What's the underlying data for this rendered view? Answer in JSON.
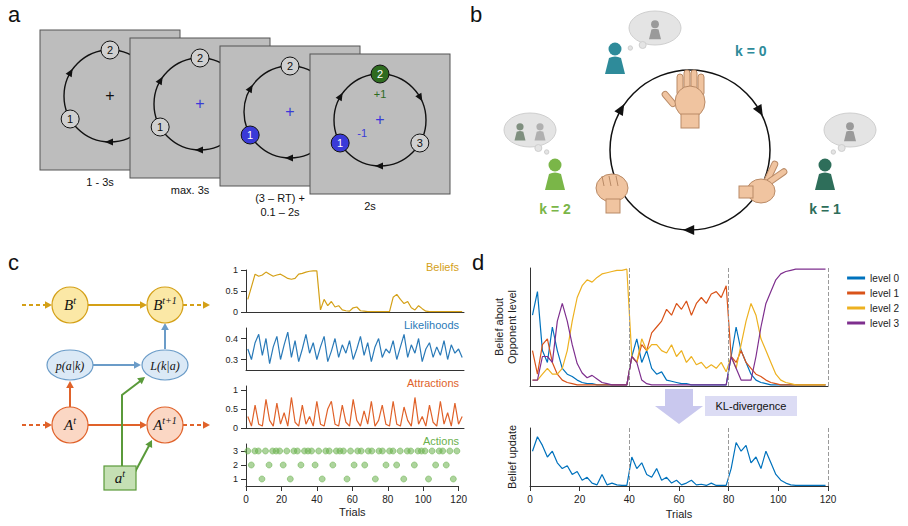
{
  "panel_labels": [
    "a",
    "b",
    "c",
    "d"
  ],
  "panel_a": {
    "screens": [
      {
        "labels": [
          "1",
          "2"
        ],
        "fixation": "+",
        "timing": [
          "1 - 3s"
        ]
      },
      {
        "labels": [
          "1",
          "2"
        ],
        "fixation": "+",
        "timing": [
          "max. 3s"
        ]
      },
      {
        "labels": [
          "1",
          "2"
        ],
        "fixation": "+",
        "timing": [
          "(3 – RT) +",
          "0.1 – 2s"
        ]
      },
      {
        "labels": [
          "1",
          "2",
          "3"
        ],
        "fixation": "+",
        "timing": [
          "2s"
        ],
        "outcomes": [
          "-1",
          "+1"
        ]
      }
    ]
  },
  "panel_b": {
    "players": [
      "k = 0",
      "k = 1",
      "k = 2"
    ]
  },
  "panel_c_diagram": {
    "nodes": [
      {
        "text": "B",
        "sup": "t"
      },
      {
        "text": "B",
        "sup": "t+1"
      },
      {
        "text": "p(a|k)"
      },
      {
        "text": "L(k|a)"
      },
      {
        "text": "A",
        "sup": "t"
      },
      {
        "text": "A",
        "sup": "t+1"
      },
      {
        "text": "a",
        "sup": "t"
      }
    ]
  },
  "panel_d": {
    "arrow_label": "KL-divergence"
  },
  "chart_data": [
    {
      "type": "line",
      "title": "Beliefs",
      "color": "#d4a017",
      "tick_labels": "y",
      "xlim": [
        0,
        120
      ],
      "ylim": [
        0,
        1
      ],
      "yticks": [
        0,
        0.5,
        1
      ],
      "x": [
        1,
        3,
        5,
        7,
        9,
        11,
        13,
        15,
        17,
        19,
        21,
        23,
        25,
        27,
        29,
        31,
        33,
        35,
        37,
        39,
        41,
        43,
        45,
        47,
        49,
        51,
        53,
        55,
        57,
        59,
        61,
        63,
        65,
        67,
        69,
        71,
        73,
        75,
        77,
        79,
        81,
        83,
        85,
        87,
        89,
        91,
        93,
        95,
        97,
        99,
        101,
        103,
        105,
        107,
        109,
        111,
        113,
        115,
        117,
        119
      ],
      "values": [
        0.3,
        0.6,
        0.9,
        0.85,
        0.88,
        0.95,
        0.9,
        0.85,
        0.88,
        0.9,
        0.85,
        0.8,
        0.78,
        0.8,
        0.9,
        0.92,
        0.95,
        0.97,
        0.98,
        0.98,
        0.05,
        0.3,
        0.15,
        0.25,
        0.12,
        0.15,
        0.05,
        0.03,
        0.02,
        0.1,
        0.12,
        0.03,
        0.02,
        0.01,
        0.01,
        0.01,
        0.01,
        0.01,
        0.01,
        0.01,
        0.35,
        0.42,
        0.3,
        0.2,
        0.25,
        0.1,
        0.05,
        0.15,
        0.08,
        0.02,
        0.01,
        0.01,
        0.01,
        0.01,
        0.01,
        0.01,
        0.01,
        0.01,
        0.01,
        0.01
      ]
    },
    {
      "type": "line",
      "title": "Likelihoods",
      "color": "#2a7ab8",
      "tick_labels": "y",
      "xlim": [
        0,
        120
      ],
      "ylim": [
        0.25,
        0.45
      ],
      "yticks": [
        0.3,
        0.4
      ],
      "x": [
        1,
        3,
        5,
        7,
        9,
        11,
        13,
        15,
        17,
        19,
        21,
        23,
        25,
        27,
        29,
        31,
        33,
        35,
        37,
        39,
        41,
        43,
        45,
        47,
        49,
        51,
        53,
        55,
        57,
        59,
        61,
        63,
        65,
        67,
        69,
        71,
        73,
        75,
        77,
        79,
        81,
        83,
        85,
        87,
        89,
        91,
        93,
        95,
        97,
        99,
        101,
        103,
        105,
        107,
        109,
        111,
        113,
        115,
        117,
        119
      ],
      "values": [
        0.35,
        0.3,
        0.38,
        0.42,
        0.32,
        0.4,
        0.28,
        0.36,
        0.41,
        0.3,
        0.37,
        0.43,
        0.31,
        0.39,
        0.29,
        0.35,
        0.42,
        0.33,
        0.38,
        0.3,
        0.36,
        0.41,
        0.29,
        0.34,
        0.4,
        0.31,
        0.37,
        0.33,
        0.39,
        0.3,
        0.35,
        0.41,
        0.32,
        0.38,
        0.29,
        0.36,
        0.4,
        0.31,
        0.35,
        0.33,
        0.39,
        0.3,
        0.36,
        0.42,
        0.31,
        0.37,
        0.33,
        0.4,
        0.29,
        0.35,
        0.38,
        0.31,
        0.36,
        0.32,
        0.39,
        0.3,
        0.37,
        0.33,
        0.35,
        0.31
      ]
    },
    {
      "type": "line",
      "title": "Attractions",
      "color": "#e0622a",
      "tick_labels": "y",
      "xlim": [
        0,
        120
      ],
      "ylim": [
        0,
        1.1
      ],
      "yticks": [
        0,
        0.5,
        1
      ],
      "x": [
        1,
        3,
        5,
        7,
        9,
        11,
        13,
        15,
        17,
        19,
        21,
        23,
        25,
        27,
        29,
        31,
        33,
        35,
        37,
        39,
        41,
        43,
        45,
        47,
        49,
        51,
        53,
        55,
        57,
        59,
        61,
        63,
        65,
        67,
        69,
        71,
        73,
        75,
        77,
        79,
        81,
        83,
        85,
        87,
        89,
        91,
        93,
        95,
        97,
        99,
        101,
        103,
        105,
        107,
        109,
        111,
        113,
        115,
        117,
        119
      ],
      "values": [
        0.3,
        0.05,
        0.6,
        0.1,
        0.05,
        0.75,
        0.2,
        0.05,
        0.65,
        0.1,
        0.4,
        0.05,
        0.8,
        0.15,
        0.05,
        0.6,
        0.1,
        0.3,
        0.05,
        0.7,
        0.1,
        0.05,
        0.5,
        0.7,
        0.1,
        0.05,
        0.6,
        0.15,
        0.05,
        0.75,
        0.2,
        0.05,
        0.45,
        0.1,
        0.7,
        0.05,
        0.2,
        0.6,
        0.1,
        0.05,
        0.7,
        0.1,
        0.05,
        0.55,
        0.2,
        0.05,
        0.8,
        0.1,
        0.3,
        0.05,
        0.6,
        0.15,
        0.05,
        0.7,
        0.1,
        0.4,
        0.05,
        0.65,
        0.1,
        0.3
      ]
    },
    {
      "type": "scatter",
      "title": "Actions",
      "color": "#6ab04c",
      "marker": "circle",
      "tick_labels": true,
      "xlabel": "Trials",
      "xlim": [
        0,
        120
      ],
      "xticks": [
        0,
        20,
        40,
        60,
        80,
        100,
        120
      ],
      "ylim": [
        0.5,
        3.5
      ],
      "yticks": [
        1,
        2,
        3
      ],
      "x": [
        1,
        3,
        5,
        7,
        9,
        11,
        13,
        15,
        17,
        19,
        21,
        23,
        25,
        27,
        29,
        31,
        33,
        35,
        37,
        39,
        41,
        43,
        45,
        47,
        49,
        51,
        53,
        55,
        57,
        59,
        61,
        63,
        65,
        67,
        69,
        71,
        73,
        75,
        77,
        79,
        81,
        83,
        85,
        87,
        89,
        91,
        93,
        95,
        97,
        99,
        101,
        103,
        105,
        107,
        109,
        111,
        113,
        115,
        117,
        119
      ],
      "values": [
        3,
        2,
        3,
        3,
        1,
        3,
        2,
        3,
        3,
        3,
        2,
        3,
        1,
        3,
        3,
        2,
        3,
        3,
        3,
        2,
        3,
        1,
        3,
        3,
        2,
        3,
        3,
        3,
        1,
        3,
        2,
        3,
        3,
        2,
        3,
        3,
        1,
        3,
        3,
        2,
        3,
        3,
        2,
        3,
        1,
        3,
        3,
        2,
        3,
        3,
        3,
        1,
        3,
        2,
        3,
        3,
        2,
        3,
        1,
        3
      ]
    },
    {
      "type": "line",
      "ylabel": "Belief about\nOpponent level",
      "tick_labels": false,
      "legend": "upper right",
      "xlim": [
        0,
        120
      ],
      "ylim": [
        0,
        1
      ],
      "vlines": [
        40,
        80,
        120
      ],
      "x": [
        1,
        3,
        5,
        7,
        9,
        11,
        13,
        15,
        17,
        19,
        21,
        23,
        25,
        27,
        29,
        31,
        33,
        35,
        37,
        39,
        41,
        43,
        45,
        47,
        49,
        51,
        53,
        55,
        57,
        59,
        61,
        63,
        65,
        67,
        69,
        71,
        73,
        75,
        77,
        79,
        81,
        83,
        85,
        87,
        89,
        91,
        93,
        95,
        97,
        99,
        101,
        103,
        105,
        107,
        109,
        111,
        113,
        115,
        117,
        119
      ],
      "series": [
        {
          "name": "level 0",
          "color": "#0072bd",
          "values": [
            0.6,
            0.8,
            0.3,
            0.2,
            0.5,
            0.3,
            0.15,
            0.1,
            0.08,
            0.05,
            0.03,
            0.02,
            0.02,
            0.01,
            0.01,
            0.01,
            0.01,
            0.01,
            0.01,
            0.01,
            0.25,
            0.4,
            0.2,
            0.3,
            0.15,
            0.1,
            0.12,
            0.05,
            0.04,
            0.03,
            0.02,
            0.02,
            0.01,
            0.01,
            0.01,
            0.01,
            0.01,
            0.01,
            0.01,
            0.01,
            0.25,
            0.5,
            0.3,
            0.2,
            0.1,
            0.05,
            0.03,
            0.02,
            0.01,
            0.01,
            0.01,
            0.01,
            0.01,
            0.01,
            0.01,
            0.01,
            0.01,
            0.01,
            0.01,
            0.01
          ]
        },
        {
          "name": "level 1",
          "color": "#d95319",
          "values": [
            0.3,
            0.1,
            0.35,
            0.4,
            0.2,
            0.1,
            0.05,
            0.03,
            0.02,
            0.01,
            0.01,
            0.01,
            0.01,
            0.01,
            0.01,
            0.01,
            0.01,
            0.01,
            0.01,
            0.01,
            0.25,
            0.2,
            0.35,
            0.3,
            0.45,
            0.5,
            0.55,
            0.65,
            0.6,
            0.7,
            0.65,
            0.72,
            0.6,
            0.7,
            0.75,
            0.7,
            0.78,
            0.8,
            0.75,
            0.85,
            0.25,
            0.2,
            0.3,
            0.2,
            0.15,
            0.1,
            0.08,
            0.05,
            0.03,
            0.02,
            0.01,
            0.01,
            0.01,
            0.01,
            0.01,
            0.01,
            0.01,
            0.01,
            0.01,
            0.01
          ]
        },
        {
          "name": "level 2",
          "color": "#edb120",
          "values": [
            0.05,
            0.05,
            0.1,
            0.15,
            0.1,
            0.1,
            0.15,
            0.3,
            0.55,
            0.75,
            0.85,
            0.9,
            0.88,
            0.92,
            0.95,
            0.96,
            0.97,
            0.98,
            0.98,
            0.99,
            0.25,
            0.2,
            0.4,
            0.3,
            0.35,
            0.35,
            0.3,
            0.28,
            0.35,
            0.25,
            0.3,
            0.2,
            0.25,
            0.18,
            0.2,
            0.15,
            0.18,
            0.15,
            0.2,
            0.12,
            0.25,
            0.15,
            0.35,
            0.55,
            0.7,
            0.6,
            0.4,
            0.3,
            0.2,
            0.1,
            0.05,
            0.03,
            0.02,
            0.01,
            0.01,
            0.01,
            0.01,
            0.01,
            0.01,
            0.01
          ]
        },
        {
          "name": "level 3",
          "color": "#7e2f8e",
          "values": [
            0.05,
            0.05,
            0.25,
            0.25,
            0.2,
            0.55,
            0.7,
            0.55,
            0.35,
            0.19,
            0.11,
            0.07,
            0.09,
            0.06,
            0.03,
            0.02,
            0.01,
            0.01,
            0.01,
            0.01,
            0.25,
            0.2,
            0.05,
            0.02,
            0.01,
            0.01,
            0.01,
            0.01,
            0.01,
            0.01,
            0.01,
            0.01,
            0.01,
            0.01,
            0.01,
            0.01,
            0.01,
            0.01,
            0.01,
            0.01,
            0.25,
            0.15,
            0.05,
            0.05,
            0.05,
            0.25,
            0.5,
            0.7,
            0.8,
            0.9,
            0.95,
            0.97,
            0.98,
            0.99,
            0.99,
            0.99,
            0.99,
            0.99,
            0.99,
            0.99
          ]
        }
      ]
    },
    {
      "type": "line",
      "ylabel": "Belief update",
      "xlabel": "Trials",
      "color": "#0072bd",
      "tick_labels": "x",
      "xlim": [
        0,
        120
      ],
      "xticks": [
        0,
        20,
        40,
        60,
        80,
        100,
        120
      ],
      "ylim": [
        0,
        1
      ],
      "vlines": [
        40,
        80,
        120
      ],
      "x": [
        1,
        3,
        5,
        7,
        9,
        11,
        13,
        15,
        17,
        19,
        21,
        23,
        25,
        27,
        29,
        31,
        33,
        35,
        37,
        39,
        41,
        43,
        45,
        47,
        49,
        51,
        53,
        55,
        57,
        59,
        61,
        63,
        65,
        67,
        69,
        71,
        73,
        75,
        77,
        79,
        81,
        83,
        85,
        87,
        89,
        91,
        93,
        95,
        97,
        99,
        101,
        103,
        105,
        107,
        109,
        111,
        113,
        115,
        117,
        119
      ],
      "values": [
        0.6,
        0.85,
        0.7,
        0.5,
        0.6,
        0.4,
        0.3,
        0.35,
        0.2,
        0.25,
        0.1,
        0.15,
        0.05,
        0.02,
        0.2,
        0.02,
        0.05,
        0.02,
        0.01,
        0.01,
        0.5,
        0.3,
        0.4,
        0.2,
        0.15,
        0.3,
        0.1,
        0.15,
        0.05,
        0.1,
        0.02,
        0.05,
        0.1,
        0.02,
        0.03,
        0.01,
        0.05,
        0.01,
        0.01,
        0.01,
        0.3,
        0.75,
        0.6,
        0.7,
        0.4,
        0.5,
        0.3,
        0.6,
        0.4,
        0.2,
        0.1,
        0.05,
        0.02,
        0.01,
        0.01,
        0.01,
        0.01,
        0.01,
        0.01,
        0.01
      ]
    }
  ]
}
